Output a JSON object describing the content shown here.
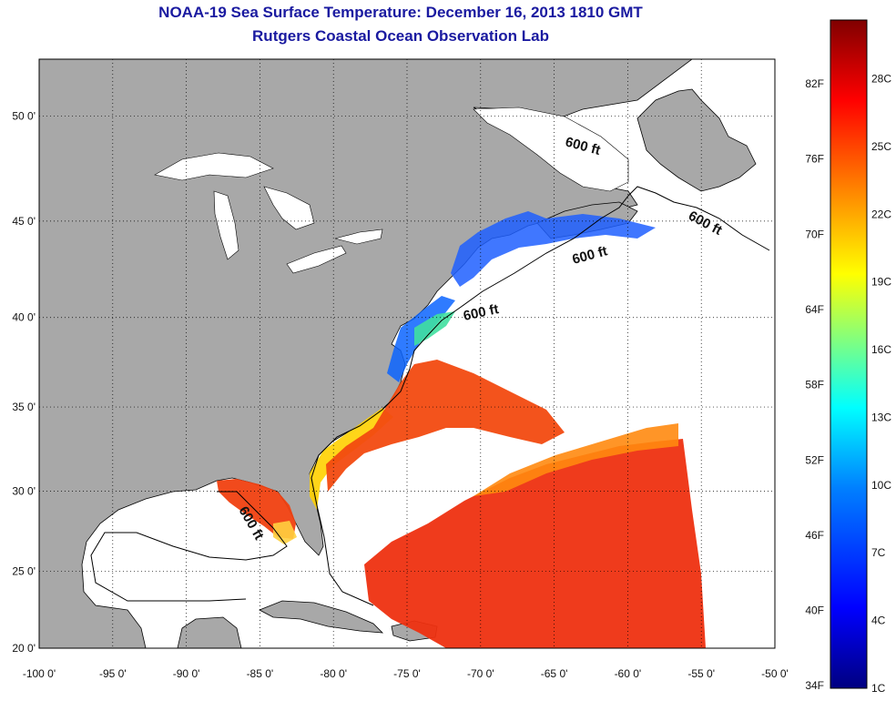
{
  "title": {
    "line1": "NOAA-19 Sea Surface Temperature:  December 16, 2013 1810 GMT",
    "line2": "Rutgers Coastal Ocean Observation Lab"
  },
  "axes": {
    "lon_ticks": [
      "-100 0'",
      "-95 0'",
      "-90 0'",
      "-85 0'",
      "-80 0'",
      "-75 0'",
      "-70 0'",
      "-65 0'",
      "-60 0'",
      "-55 0'",
      "-50 0'"
    ],
    "lon_values": [
      -100,
      -95,
      -90,
      -85,
      -80,
      -75,
      -70,
      -65,
      -60,
      -55,
      -50
    ],
    "lat_ticks": [
      "20 0'",
      "25 0'",
      "30 0'",
      "35 0'",
      "40 0'",
      "45 0'",
      "50 0'"
    ],
    "lat_values": [
      20,
      25,
      30,
      35,
      40,
      45,
      50
    ],
    "lon_range": [
      -100,
      -50
    ],
    "lat_range": [
      20,
      52.5
    ],
    "grid": "dotted"
  },
  "isobath_labels": [
    "600 ft",
    "600 ft",
    "600 ft",
    "600 ft",
    "600 ft"
  ],
  "colorbar": {
    "fahrenheit": [
      "82F",
      "76F",
      "70F",
      "64F",
      "58F",
      "52F",
      "46F",
      "40F",
      "34F"
    ],
    "celsius": [
      "28C",
      "25C",
      "22C",
      "19C",
      "16C",
      "13C",
      "10C",
      "7C",
      "4C",
      "1C"
    ],
    "colors": [
      "#000080",
      "#0000ff",
      "#0080ff",
      "#00ffff",
      "#80ff80",
      "#ffff00",
      "#ff8000",
      "#ff0000",
      "#800000"
    ]
  },
  "colors": {
    "land": "#a8a8a8",
    "ocean_no_data": "#ffffff",
    "title": "#1a1aa0"
  }
}
